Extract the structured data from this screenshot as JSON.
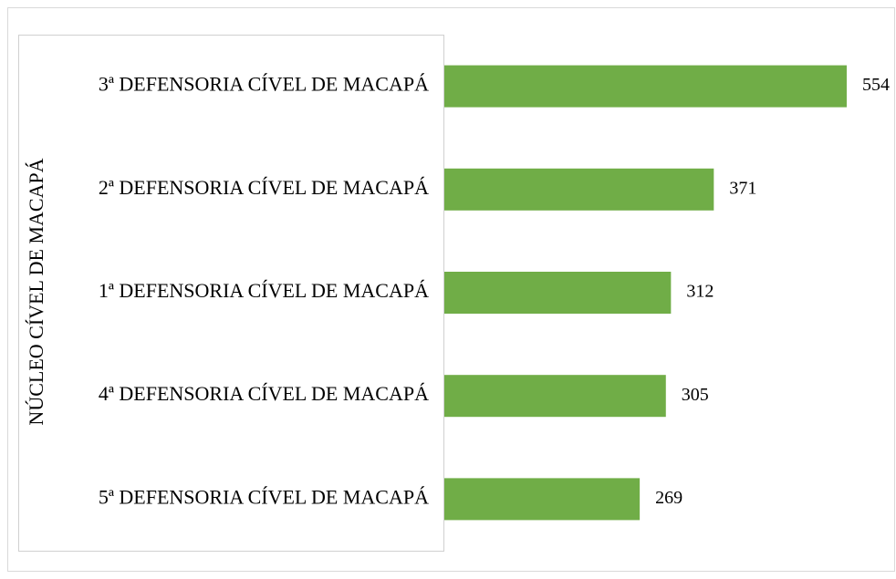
{
  "chart_data": {
    "type": "bar",
    "orientation": "horizontal",
    "group_label": "NÚCLEO CÍVEL DE MACAPÁ",
    "categories": [
      "3ª DEFENSORIA CÍVEL DE MACAPÁ",
      "2ª DEFENSORIA CÍVEL DE MACAPÁ",
      "1ª DEFENSORIA CÍVEL DE MACAPÁ",
      "4ª DEFENSORIA CÍVEL DE MACAPÁ",
      "5ª DEFENSORIA CÍVEL DE MACAPÁ"
    ],
    "values": [
      554,
      371,
      312,
      305,
      269
    ],
    "color": "#70ad47"
  }
}
